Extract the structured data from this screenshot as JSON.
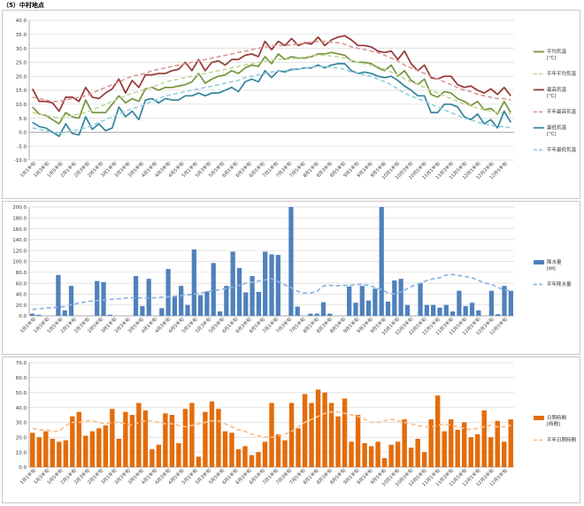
{
  "page_title": "（5）中村地点",
  "x_labels": [
    "1月1半旬",
    "1月3半旬",
    "1月5半旬",
    "2月1半旬",
    "2月3半旬",
    "2月5半旬",
    "3月1半旬",
    "3月3半旬",
    "3月5半旬",
    "4月1半旬",
    "4月3半旬",
    "4月5半旬",
    "5月1半旬",
    "5月3半旬",
    "5月5半旬",
    "6月1半旬",
    "6月3半旬",
    "6月5半旬",
    "7月1半旬",
    "7月3半旬",
    "7月5半旬",
    "8月1半旬",
    "8月3半旬",
    "8月5半旬",
    "9月1半旬",
    "9月3半旬",
    "9月5半旬",
    "10月1半旬",
    "10月3半旬",
    "10月5半旬",
    "11月1半旬",
    "11月3半旬",
    "11月5半旬",
    "12月1半旬",
    "12月3半旬",
    "12月5半旬"
  ],
  "chart_data": [
    {
      "type": "line",
      "ylim": [
        -10,
        40
      ],
      "yticks": [
        "-10.0",
        "-5.0",
        "0.0",
        "5.0",
        "10.0",
        "15.0",
        "20.0",
        "25.0",
        "30.0",
        "35.0",
        "40.0"
      ],
      "series": [
        {
          "name": "平均気温\n[℃]",
          "color": "#77933c",
          "dash": false,
          "values": [
            9.0,
            6.5,
            6.0,
            4.5,
            3.0,
            7.0,
            5.5,
            5.0,
            11.5,
            7.0,
            7.0,
            7.0,
            10.0,
            13.0,
            10.5,
            12.0,
            11.0,
            15.5,
            16.0,
            15.0,
            16.0,
            16.0,
            16.5,
            17.0,
            18.0,
            21.0,
            17.5,
            19.0,
            20.0,
            20.5,
            22.0,
            21.0,
            23.0,
            24.0,
            23.5,
            27.0,
            24.5,
            28.0,
            26.0,
            27.0,
            26.5,
            26.5,
            27.0,
            28.0,
            28.0,
            28.5,
            28.0,
            27.5,
            25.5,
            25.0,
            25.0,
            24.5,
            23.0,
            22.0,
            24.0,
            20.0,
            22.0,
            18.5,
            17.0,
            19.0,
            13.5,
            12.5,
            14.5,
            14.0,
            12.0,
            11.0,
            9.5,
            11.0,
            8.0,
            8.5,
            6.5,
            11.0,
            7.0
          ]
        },
        {
          "name": "平年平均気温",
          "color": "#c4d79b",
          "dash": true,
          "values": [
            7.0,
            6.5,
            6.0,
            5.5,
            5.2,
            5.5,
            6.0,
            6.5,
            7.0,
            8.0,
            9.0,
            10.0,
            11.0,
            12.0,
            13.0,
            14.0,
            14.5,
            15.5,
            16.0,
            17.0,
            18.0,
            18.5,
            19.0,
            19.5,
            20.0,
            20.5,
            21.0,
            21.5,
            22.0,
            22.5,
            23.0,
            23.5,
            24.0,
            24.5,
            25.0,
            25.5,
            25.8,
            26.0,
            26.0,
            26.2,
            26.5,
            27.0,
            27.2,
            27.5,
            27.5,
            27.2,
            27.0,
            26.5,
            25.5,
            25.0,
            24.5,
            24.0,
            23.5,
            22.5,
            21.5,
            20.5,
            19.0,
            18.0,
            17.0,
            16.0,
            15.0,
            14.0,
            13.0,
            12.0,
            11.0,
            10.0,
            9.5,
            8.5,
            8.0,
            7.5,
            7.0,
            7.0,
            6.5
          ]
        },
        {
          "name": "最高気温\n[℃]",
          "color": "#953735",
          "dash": false,
          "values": [
            15.5,
            11.0,
            11.0,
            10.5,
            7.5,
            12.5,
            12.5,
            11.0,
            16.0,
            12.5,
            12.0,
            14.0,
            15.5,
            19.0,
            14.0,
            18.5,
            16.0,
            20.5,
            20.5,
            21.0,
            21.0,
            22.0,
            22.5,
            25.0,
            22.0,
            26.0,
            22.0,
            25.0,
            25.5,
            24.0,
            26.0,
            26.0,
            27.5,
            28.0,
            27.0,
            32.5,
            29.5,
            32.5,
            31.0,
            33.5,
            31.0,
            32.0,
            31.5,
            34.0,
            31.0,
            33.0,
            34.0,
            34.5,
            33.0,
            31.0,
            31.0,
            30.5,
            29.0,
            28.5,
            29.0,
            26.0,
            29.0,
            24.5,
            22.0,
            24.0,
            19.5,
            19.0,
            20.0,
            20.0,
            17.0,
            16.0,
            16.5,
            15.0,
            14.0,
            15.5,
            13.5,
            16.0,
            13.0
          ]
        },
        {
          "name": "平年最高気温",
          "color": "#da9694",
          "dash": true,
          "values": [
            12.5,
            12.0,
            11.5,
            11.0,
            11.0,
            11.5,
            12.0,
            12.5,
            13.0,
            14.0,
            15.0,
            16.0,
            17.0,
            18.0,
            19.0,
            20.0,
            20.5,
            21.0,
            22.0,
            22.5,
            23.0,
            23.5,
            24.0,
            24.5,
            25.0,
            25.5,
            26.0,
            26.5,
            27.0,
            27.5,
            28.0,
            28.5,
            29.0,
            29.5,
            30.0,
            30.5,
            30.8,
            31.0,
            31.0,
            31.2,
            31.5,
            32.0,
            32.2,
            32.5,
            32.5,
            32.2,
            32.0,
            31.5,
            30.5,
            30.0,
            29.5,
            29.0,
            28.5,
            27.5,
            26.5,
            25.5,
            24.0,
            23.0,
            22.0,
            21.0,
            20.0,
            19.0,
            18.0,
            17.0,
            16.0,
            15.0,
            14.5,
            13.5,
            13.0,
            12.5,
            12.0,
            12.0,
            11.5
          ]
        },
        {
          "name": "最低気温\n[℃]",
          "color": "#31859c",
          "dash": false,
          "values": [
            3.5,
            2.0,
            1.5,
            0.0,
            -1.5,
            3.0,
            -0.5,
            -1.0,
            5.5,
            1.0,
            3.0,
            0.5,
            1.5,
            9.0,
            5.5,
            7.5,
            4.5,
            11.5,
            12.0,
            10.5,
            12.0,
            11.5,
            11.5,
            13.0,
            13.0,
            14.0,
            13.0,
            14.0,
            14.0,
            15.0,
            16.0,
            14.5,
            18.0,
            19.0,
            18.0,
            22.0,
            19.5,
            22.0,
            21.5,
            22.5,
            22.5,
            23.0,
            23.0,
            24.0,
            23.0,
            24.0,
            24.5,
            24.5,
            22.0,
            21.0,
            21.5,
            21.0,
            20.0,
            19.5,
            20.0,
            18.5,
            16.5,
            15.0,
            13.0,
            13.0,
            7.0,
            7.0,
            10.0,
            10.0,
            9.0,
            5.5,
            4.5,
            6.5,
            3.0,
            4.5,
            1.5,
            7.5,
            3.5
          ]
        },
        {
          "name": "平年最低気温",
          "color": "#93cddd",
          "dash": true,
          "values": [
            1.5,
            1.0,
            0.5,
            0.0,
            -0.5,
            0.0,
            0.5,
            1.0,
            1.5,
            2.5,
            3.5,
            4.5,
            5.5,
            6.5,
            7.5,
            8.5,
            9.0,
            10.0,
            11.0,
            12.0,
            13.0,
            13.5,
            14.0,
            14.5,
            15.0,
            15.5,
            16.0,
            16.5,
            17.0,
            17.5,
            18.0,
            18.5,
            19.5,
            20.0,
            20.5,
            21.0,
            21.5,
            22.0,
            22.0,
            22.2,
            22.5,
            23.0,
            23.2,
            23.5,
            23.5,
            23.2,
            23.0,
            22.5,
            21.5,
            21.0,
            20.5,
            20.0,
            19.0,
            18.0,
            17.0,
            15.5,
            14.0,
            13.0,
            12.0,
            11.0,
            10.0,
            9.0,
            8.0,
            7.0,
            6.0,
            5.0,
            4.5,
            3.5,
            3.0,
            2.5,
            2.0,
            2.0,
            1.5
          ]
        }
      ]
    },
    {
      "type": "bar",
      "ylim": [
        0,
        200
      ],
      "yticks": [
        "0.0",
        "20.0",
        "40.0",
        "60.0",
        "80.0",
        "100.0",
        "120.0",
        "140.0",
        "160.0",
        "180.0",
        "200.0"
      ],
      "series": [
        {
          "name": "降水量\n[㎜]",
          "color": "#4f81bd",
          "kind": "bar",
          "values": [
            4,
            2,
            0,
            0,
            75,
            10,
            55,
            0,
            0,
            0,
            64,
            62,
            2,
            0,
            0,
            0,
            73,
            18,
            68,
            0,
            14,
            86,
            35,
            55,
            20,
            122,
            38,
            45,
            97,
            8,
            55,
            118,
            88,
            43,
            73,
            44,
            118,
            113,
            112,
            0,
            200,
            17,
            0,
            4,
            4,
            25,
            4,
            0,
            0,
            54,
            24,
            55,
            28,
            50,
            200,
            26,
            65,
            68,
            20,
            0,
            60,
            20,
            20,
            15,
            20,
            8,
            46,
            18,
            24,
            10,
            0,
            46,
            3,
            55,
            46
          ]
        },
        {
          "name": "平年降水量",
          "color": "#8db4e2",
          "kind": "line",
          "values": [
            12,
            13,
            14,
            15,
            16,
            17,
            20,
            23,
            25,
            27,
            28,
            29,
            30,
            31,
            32,
            33,
            33,
            33,
            33,
            33,
            34,
            35,
            36,
            37,
            38,
            40,
            42,
            44,
            46,
            48,
            50,
            53,
            56,
            60,
            62,
            64,
            66,
            68,
            63,
            57,
            52,
            45,
            42,
            42,
            45,
            55,
            56,
            55,
            56,
            56,
            57,
            58,
            56,
            52,
            48,
            42,
            40,
            44,
            50,
            56,
            60,
            65,
            68,
            70,
            75,
            76,
            74,
            72,
            70,
            65,
            60,
            58,
            52,
            48,
            45
          ]
        }
      ]
    },
    {
      "type": "bar",
      "ylim": [
        0,
        70
      ],
      "yticks": [
        "0.0",
        "10.0",
        "20.0",
        "30.0",
        "40.0",
        "50.0",
        "60.0",
        "70.0"
      ],
      "series": [
        {
          "name": "日照時間\n[時間]",
          "color": "#e46c0a",
          "kind": "bar",
          "values": [
            23,
            20,
            24,
            19,
            17,
            18,
            34,
            37,
            21,
            24,
            26,
            28,
            39,
            19,
            37,
            35,
            43,
            38,
            12,
            15,
            36,
            35,
            16,
            39,
            43,
            7,
            37,
            44,
            39,
            24,
            23,
            12,
            14,
            8,
            10,
            17,
            43,
            22,
            18,
            43,
            26,
            49,
            43,
            52,
            50,
            43,
            34,
            46,
            17,
            35,
            16,
            14,
            17,
            6,
            15,
            17,
            32,
            13,
            19,
            10,
            32,
            48,
            24,
            32,
            25,
            30,
            20,
            22,
            38,
            20,
            31,
            17,
            32
          ]
        },
        {
          "name": "平年日照時間",
          "color": "#fac090",
          "kind": "line",
          "values": [
            26,
            25,
            25,
            24,
            24,
            28,
            30,
            30,
            31,
            31,
            30,
            29,
            30,
            30,
            29,
            28,
            30,
            31,
            31,
            30,
            29,
            29,
            28,
            27,
            28,
            29,
            30,
            31,
            31,
            29,
            27,
            25,
            24,
            22,
            21,
            20,
            20,
            21,
            22,
            24,
            27,
            30,
            32,
            34,
            36,
            37,
            37,
            36,
            35,
            34,
            32,
            30,
            30,
            31,
            32,
            31,
            30,
            29,
            28,
            27,
            27,
            28,
            29,
            28,
            27,
            26,
            25,
            26,
            27,
            28,
            27,
            27,
            28
          ]
        }
      ]
    }
  ]
}
